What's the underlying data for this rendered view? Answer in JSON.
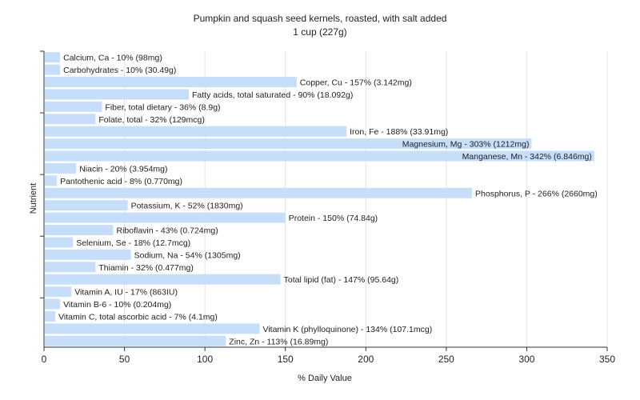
{
  "chart_data": {
    "type": "bar",
    "orientation": "horizontal",
    "title": "Pumpkin and squash seed kernels, roasted, with salt added",
    "subtitle": "1 cup (227g)",
    "xlabel": "% Daily Value",
    "ylabel": "Nutrient",
    "xlim": [
      0,
      350
    ],
    "xticks": [
      0,
      50,
      100,
      150,
      200,
      250,
      300,
      350
    ],
    "grid": true,
    "legend": "none",
    "bar_color": "#c6defa",
    "categories": [
      "Calcium, Ca",
      "Carbohydrates",
      "Copper, Cu",
      "Fatty acids, total saturated",
      "Fiber, total dietary",
      "Folate, total",
      "Iron, Fe",
      "Magnesium, Mg",
      "Manganese, Mn",
      "Niacin",
      "Pantothenic acid",
      "Phosphorus, P",
      "Potassium, K",
      "Protein",
      "Riboflavin",
      "Selenium, Se",
      "Sodium, Na",
      "Thiamin",
      "Total lipid (fat)",
      "Vitamin A, IU",
      "Vitamin B-6",
      "Vitamin C, total ascorbic acid",
      "Vitamin K (phylloquinone)",
      "Zinc, Zn"
    ],
    "values": [
      10,
      10,
      157,
      90,
      36,
      32,
      188,
      303,
      342,
      20,
      8,
      266,
      52,
      150,
      43,
      18,
      54,
      32,
      147,
      17,
      10,
      7,
      134,
      113
    ],
    "labels": [
      "Calcium, Ca - 10% (98mg)",
      "Carbohydrates - 10% (30.49g)",
      "Copper, Cu - 157% (3.142mg)",
      "Fatty acids, total saturated - 90% (18.092g)",
      "Fiber, total dietary - 36% (8.9g)",
      "Folate, total - 32% (129mcg)",
      "Iron, Fe - 188% (33.91mg)",
      "Magnesium, Mg - 303% (1212mg)",
      "Manganese, Mn - 342% (6.846mg)",
      "Niacin - 20% (3.954mg)",
      "Pantothenic acid - 8% (0.770mg)",
      "Phosphorus, P - 266% (2660mg)",
      "Potassium, K - 52% (1830mg)",
      "Protein - 150% (74.84g)",
      "Riboflavin - 43% (0.724mg)",
      "Selenium, Se - 18% (12.7mcg)",
      "Sodium, Na - 54% (1305mg)",
      "Thiamin - 32% (0.477mg)",
      "Total lipid (fat) - 147% (95.64g)",
      "Vitamin A, IU - 17% (863IU)",
      "Vitamin B-6 - 10% (0.204mg)",
      "Vitamin C, total ascorbic acid - 7% (4.1mg)",
      "Vitamin K (phylloquinone) - 134% (107.1mcg)",
      "Zinc, Zn - 113% (16.89mg)"
    ]
  }
}
